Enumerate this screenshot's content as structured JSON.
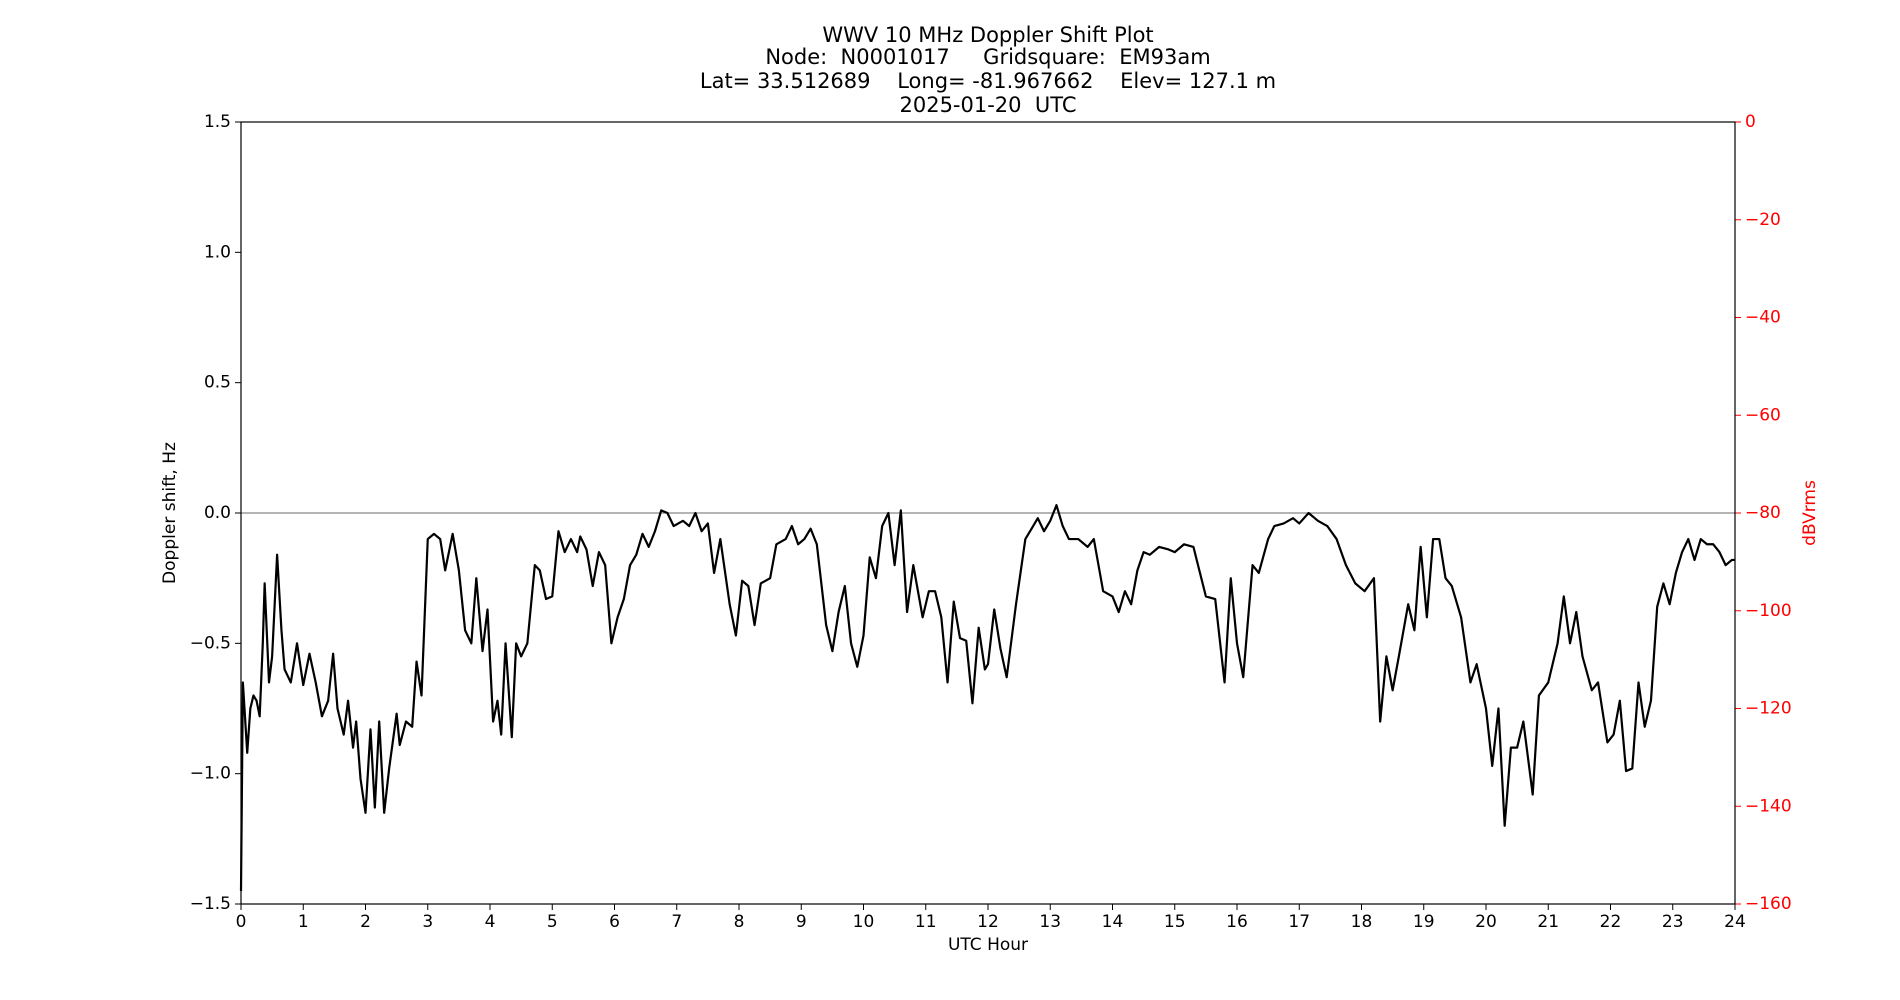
{
  "chart_data": {
    "type": "line",
    "title": "WWV 10 MHz Doppler Shift Plot",
    "subtitle_lines": [
      "Node:  N0001017     Gridsquare:  EM93am",
      "Lat= 33.512689    Long= -81.967662    Elev= 127.1 m",
      "2025-01-20  UTC"
    ],
    "xlabel": "UTC Hour",
    "ylabel": "Doppler shift, Hz",
    "y2label": "dBVrms",
    "color": "#000000",
    "y2color": "#ff0000",
    "reference_line": {
      "value": 0,
      "color": "#888888"
    },
    "xlim": [
      0,
      24
    ],
    "xticks": [
      0,
      1,
      2,
      3,
      4,
      5,
      6,
      7,
      8,
      9,
      10,
      11,
      12,
      13,
      14,
      15,
      16,
      17,
      18,
      19,
      20,
      21,
      22,
      23,
      24
    ],
    "ylim": [
      -1.5,
      1.5
    ],
    "yticks": [
      {
        "value": -1.5,
        "label": "−1.5"
      },
      {
        "value": -1.0,
        "label": "−1.0"
      },
      {
        "value": -0.5,
        "label": "−0.5"
      },
      {
        "value": 0,
        "label": "0.0"
      },
      {
        "value": 0.5,
        "label": "0.5"
      },
      {
        "value": 1.0,
        "label": "1.0"
      },
      {
        "value": 1.5,
        "label": "1.5"
      }
    ],
    "y2lim": [
      -160,
      0
    ],
    "y2ticks": [
      {
        "value": 0,
        "label": "0"
      },
      {
        "value": -20,
        "label": "−20"
      },
      {
        "value": -40,
        "label": "−40"
      },
      {
        "value": -60,
        "label": "−60"
      },
      {
        "value": -80,
        "label": "−80"
      },
      {
        "value": -100,
        "label": "−100"
      },
      {
        "value": -120,
        "label": "−120"
      },
      {
        "value": -140,
        "label": "−140"
      },
      {
        "value": -160,
        "label": "−160"
      }
    ],
    "x": [
      0,
      0.03,
      0.1,
      0.15,
      0.2,
      0.25,
      0.3,
      0.35,
      0.38,
      0.45,
      0.5,
      0.58,
      0.65,
      0.7,
      0.8,
      0.9,
      1.0,
      1.1,
      1.2,
      1.3,
      1.4,
      1.48,
      1.55,
      1.65,
      1.72,
      1.8,
      1.85,
      1.92,
      2.0,
      2.08,
      2.15,
      2.22,
      2.3,
      2.38,
      2.5,
      2.55,
      2.65,
      2.75,
      2.82,
      2.9,
      3.0,
      3.1,
      3.2,
      3.28,
      3.4,
      3.5,
      3.6,
      3.7,
      3.78,
      3.88,
      3.96,
      4.05,
      4.12,
      4.18,
      4.25,
      4.35,
      4.42,
      4.5,
      4.6,
      4.72,
      4.8,
      4.9,
      5.0,
      5.1,
      5.2,
      5.3,
      5.4,
      5.45,
      5.55,
      5.65,
      5.75,
      5.85,
      5.95,
      6.05,
      6.15,
      6.25,
      6.35,
      6.45,
      6.55,
      6.65,
      6.75,
      6.85,
      6.95,
      7.1,
      7.2,
      7.3,
      7.4,
      7.5,
      7.6,
      7.7,
      7.85,
      7.95,
      8.05,
      8.15,
      8.25,
      8.35,
      8.5,
      8.6,
      8.75,
      8.85,
      8.95,
      9.05,
      9.15,
      9.25,
      9.4,
      9.5,
      9.6,
      9.7,
      9.8,
      9.9,
      10.0,
      10.1,
      10.2,
      10.3,
      10.4,
      10.5,
      10.6,
      10.7,
      10.8,
      10.95,
      11.05,
      11.15,
      11.25,
      11.35,
      11.45,
      11.55,
      11.65,
      11.75,
      11.85,
      11.95,
      12.0,
      12.1,
      12.2,
      12.3,
      12.45,
      12.6,
      12.7,
      12.8,
      12.9,
      13.0,
      13.1,
      13.2,
      13.3,
      13.45,
      13.6,
      13.7,
      13.85,
      14.0,
      14.1,
      14.2,
      14.3,
      14.4,
      14.5,
      14.6,
      14.75,
      14.9,
      15.0,
      15.15,
      15.3,
      15.5,
      15.65,
      15.8,
      15.9,
      16.0,
      16.1,
      16.25,
      16.35,
      16.5,
      16.6,
      16.75,
      16.9,
      17.0,
      17.15,
      17.3,
      17.45,
      17.6,
      17.75,
      17.9,
      18.05,
      18.2,
      18.3,
      18.4,
      18.5,
      18.6,
      18.75,
      18.85,
      18.95,
      19.05,
      19.15,
      19.25,
      19.35,
      19.45,
      19.6,
      19.75,
      19.85,
      20.0,
      20.1,
      20.2,
      20.3,
      20.4,
      20.5,
      20.6,
      20.75,
      20.85,
      21.0,
      21.15,
      21.25,
      21.35,
      21.45,
      21.55,
      21.7,
      21.8,
      21.95,
      22.05,
      22.15,
      22.25,
      22.35,
      22.45,
      22.55,
      22.65,
      22.75,
      22.85,
      22.95,
      23.05,
      23.15,
      23.25,
      23.35,
      23.45,
      23.55,
      23.65,
      23.75,
      23.85,
      23.95,
      24.0
    ],
    "values": [
      -1.45,
      -0.65,
      -0.92,
      -0.75,
      -0.7,
      -0.72,
      -0.78,
      -0.5,
      -0.27,
      -0.65,
      -0.55,
      -0.16,
      -0.45,
      -0.6,
      -0.65,
      -0.5,
      -0.66,
      -0.54,
      -0.65,
      -0.78,
      -0.72,
      -0.54,
      -0.75,
      -0.85,
      -0.72,
      -0.9,
      -0.8,
      -1.02,
      -1.15,
      -0.83,
      -1.13,
      -0.8,
      -1.15,
      -0.98,
      -0.77,
      -0.89,
      -0.8,
      -0.82,
      -0.57,
      -0.7,
      -0.1,
      -0.08,
      -0.1,
      -0.22,
      -0.08,
      -0.22,
      -0.45,
      -0.5,
      -0.25,
      -0.53,
      -0.37,
      -0.8,
      -0.72,
      -0.85,
      -0.5,
      -0.86,
      -0.5,
      -0.55,
      -0.5,
      -0.2,
      -0.22,
      -0.33,
      -0.32,
      -0.07,
      -0.15,
      -0.1,
      -0.15,
      -0.09,
      -0.14,
      -0.28,
      -0.15,
      -0.2,
      -0.5,
      -0.4,
      -0.33,
      -0.2,
      -0.16,
      -0.08,
      -0.13,
      -0.07,
      0.01,
      0.0,
      -0.05,
      -0.03,
      -0.05,
      0.0,
      -0.07,
      -0.04,
      -0.23,
      -0.1,
      -0.35,
      -0.47,
      -0.26,
      -0.28,
      -0.43,
      -0.27,
      -0.25,
      -0.12,
      -0.1,
      -0.05,
      -0.12,
      -0.1,
      -0.06,
      -0.12,
      -0.43,
      -0.53,
      -0.38,
      -0.28,
      -0.5,
      -0.59,
      -0.47,
      -0.17,
      -0.25,
      -0.05,
      0.0,
      -0.2,
      0.01,
      -0.38,
      -0.2,
      -0.4,
      -0.3,
      -0.3,
      -0.4,
      -0.65,
      -0.34,
      -0.48,
      -0.49,
      -0.73,
      -0.44,
      -0.6,
      -0.58,
      -0.37,
      -0.52,
      -0.63,
      -0.35,
      -0.1,
      -0.06,
      -0.02,
      -0.07,
      -0.03,
      0.03,
      -0.05,
      -0.1,
      -0.1,
      -0.13,
      -0.1,
      -0.3,
      -0.32,
      -0.38,
      -0.3,
      -0.35,
      -0.22,
      -0.15,
      -0.16,
      -0.13,
      -0.14,
      -0.15,
      -0.12,
      -0.13,
      -0.32,
      -0.33,
      -0.65,
      -0.25,
      -0.5,
      -0.63,
      -0.2,
      -0.23,
      -0.1,
      -0.05,
      -0.04,
      -0.02,
      -0.04,
      0.0,
      -0.03,
      -0.05,
      -0.1,
      -0.2,
      -0.27,
      -0.3,
      -0.25,
      -0.8,
      -0.55,
      -0.68,
      -0.55,
      -0.35,
      -0.45,
      -0.13,
      -0.4,
      -0.1,
      -0.1,
      -0.25,
      -0.28,
      -0.4,
      -0.65,
      -0.58,
      -0.75,
      -0.97,
      -0.75,
      -1.2,
      -0.9,
      -0.9,
      -0.8,
      -1.08,
      -0.7,
      -0.65,
      -0.5,
      -0.32,
      -0.5,
      -0.38,
      -0.55,
      -0.68,
      -0.65,
      -0.88,
      -0.85,
      -0.72,
      -0.99,
      -0.98,
      -0.65,
      -0.82,
      -0.72,
      -0.36,
      -0.27,
      -0.35,
      -0.23,
      -0.15,
      -0.1,
      -0.18,
      -0.1,
      -0.12,
      -0.12,
      -0.15,
      -0.2,
      -0.18,
      -0.18
    ]
  }
}
